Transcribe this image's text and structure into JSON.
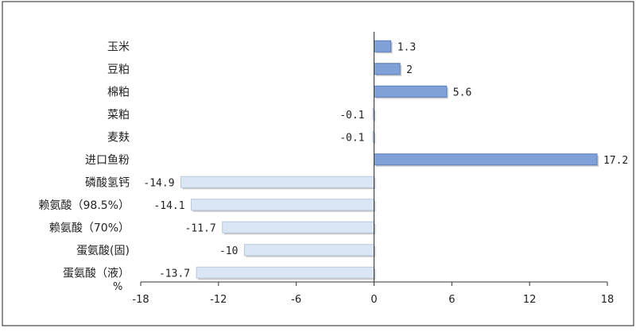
{
  "colors": {
    "positive_bar": "#7fa1d8",
    "positive_bar_edge": "#5b7fbf",
    "negative_bar": "#dbe6f4",
    "negative_bar_edge": "#b9c8de",
    "axis": "#333333",
    "frame": "#222222"
  },
  "chart_data": {
    "type": "bar",
    "orientation": "horizontal",
    "categories": [
      "玉米",
      "豆粕",
      "棉粕",
      "菜粕",
      "麦麸",
      "进口鱼粉",
      "磷酸氢钙",
      "赖氨酸（98.5%）",
      "赖氨酸（70%）",
      "蛋氨酸(固)",
      "蛋氨酸（液）"
    ],
    "values": [
      1.3,
      2,
      5.6,
      -0.1,
      -0.1,
      17.2,
      -14.9,
      -14.1,
      -11.7,
      -10,
      -13.7
    ],
    "value_labels": [
      "1.3",
      "2",
      "5.6",
      "-0.1",
      "-0.1",
      "17.2",
      "-14.9",
      "-14.1",
      "-11.7",
      "-10",
      "-13.7"
    ],
    "xlim": [
      -18,
      18
    ],
    "xticks": [
      -18,
      -12,
      -6,
      0,
      6,
      12,
      18
    ],
    "xtick_labels": [
      "-18",
      "-12",
      "-6",
      "0",
      "6",
      "12",
      "18"
    ],
    "unit_label": "%",
    "grid": false,
    "legend": "none"
  }
}
